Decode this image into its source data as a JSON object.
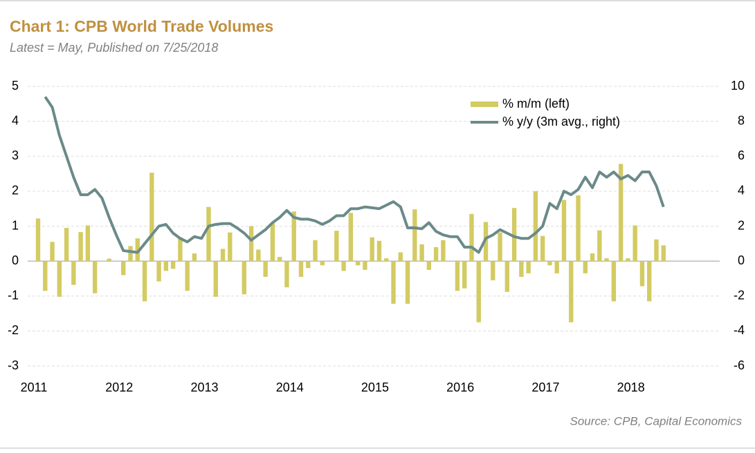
{
  "chart_data": {
    "type": "bar-line",
    "title": "Chart 1: CPB World Trade Volumes",
    "subtitle": "Latest = May, Published on 7/25/2018",
    "source": "Source: CPB, Capital Economics",
    "categories": [
      "2011",
      null,
      null,
      null,
      null,
      null,
      null,
      null,
      null,
      null,
      null,
      null,
      "2012",
      null,
      null,
      null,
      null,
      null,
      null,
      null,
      null,
      null,
      null,
      null,
      "2013",
      null,
      null,
      null,
      null,
      null,
      null,
      null,
      null,
      null,
      null,
      null,
      "2014",
      null,
      null,
      null,
      null,
      null,
      null,
      null,
      null,
      null,
      null,
      null,
      "2015",
      null,
      null,
      null,
      null,
      null,
      null,
      null,
      null,
      null,
      null,
      null,
      "2016",
      null,
      null,
      null,
      null,
      null,
      null,
      null,
      null,
      null,
      null,
      null,
      "2017",
      null,
      null,
      null,
      null,
      null,
      null,
      null,
      null,
      null,
      null,
      null,
      "2018",
      null,
      null,
      null,
      null
    ],
    "series": [
      {
        "name": "% m/m (left)",
        "type": "bar",
        "color": "#d3cb63",
        "values": [
          1.22,
          -0.85,
          0.55,
          -1.02,
          0.95,
          -0.68,
          0.83,
          1.02,
          -0.92,
          0,
          0.07,
          0,
          -0.4,
          0.43,
          0.65,
          -1.15,
          2.53,
          -0.58,
          -0.28,
          -0.22,
          0.68,
          -0.85,
          0.22,
          0,
          1.55,
          -1.02,
          0.35,
          0.82,
          0,
          -0.95,
          1.0,
          0.33,
          -0.45,
          1.08,
          0.12,
          -0.75,
          1.42,
          -0.45,
          -0.2,
          0.6,
          -0.12,
          0,
          0.87,
          -0.28,
          1.38,
          -0.12,
          -0.25,
          0.68,
          0.58,
          0.08,
          -1.22,
          0.25,
          -1.22,
          1.48,
          0.48,
          -0.25,
          0.4,
          0.6,
          0,
          -0.85,
          -0.78,
          1.35,
          -1.75,
          1.12,
          -0.55,
          0.82,
          -0.88,
          1.52,
          -0.45,
          -0.35,
          2.0,
          0.72,
          -0.12,
          -0.35,
          1.75,
          -1.75,
          1.88,
          -0.35,
          0.22,
          0.88,
          0.08,
          -1.15,
          2.78,
          0.08,
          1.02,
          -0.72,
          -1.15,
          0.62,
          0.45
        ]
      },
      {
        "name": "% y/y (3m avg., right)",
        "type": "line",
        "axis": "y2",
        "color": "#6b8a89",
        "values": [
          null,
          9.4,
          8.8,
          7.2,
          6.0,
          4.8,
          3.8,
          3.8,
          4.1,
          3.6,
          2.5,
          1.5,
          0.6,
          0.55,
          0.5,
          1.0,
          1.5,
          2.0,
          2.1,
          1.6,
          1.3,
          1.1,
          1.4,
          1.3,
          2.0,
          2.1,
          2.15,
          2.15,
          1.9,
          1.6,
          1.2,
          1.5,
          1.8,
          2.2,
          2.5,
          2.9,
          2.5,
          2.4,
          2.4,
          2.3,
          2.1,
          2.3,
          2.6,
          2.6,
          3.0,
          3.0,
          3.1,
          3.05,
          3.0,
          3.2,
          3.4,
          3.1,
          1.9,
          1.9,
          1.85,
          2.2,
          1.7,
          1.5,
          1.4,
          1.4,
          0.8,
          0.8,
          0.5,
          1.3,
          1.5,
          1.8,
          1.6,
          1.4,
          1.3,
          1.3,
          1.6,
          2.0,
          3.3,
          3.0,
          4.0,
          3.8,
          4.1,
          4.8,
          4.2,
          5.1,
          4.8,
          5.1,
          4.7,
          4.9,
          4.6,
          5.1,
          5.1,
          4.3,
          3.1
        ]
      }
    ],
    "ylim": [
      -3,
      5
    ],
    "yticks": [
      -3,
      -2,
      -1,
      0,
      1,
      2,
      3,
      4,
      5
    ],
    "y2lim": [
      -6,
      10
    ],
    "y2ticks": [
      -6,
      -4,
      -2,
      0,
      2,
      4,
      6,
      8,
      10
    ],
    "grid": true,
    "legend": "top-right"
  }
}
